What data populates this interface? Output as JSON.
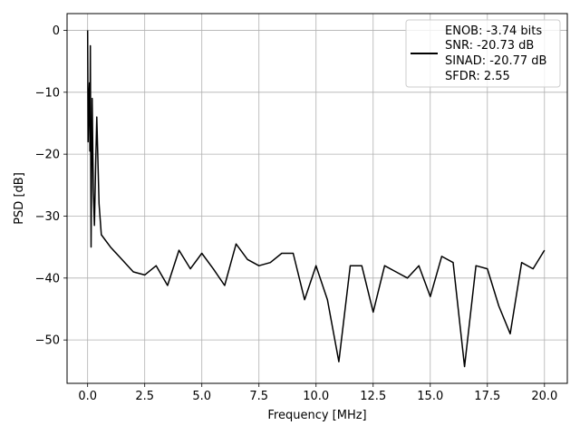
{
  "chart_data": {
    "type": "line",
    "xlabel": "Frequency [MHz]",
    "ylabel": "PSD [dB]",
    "xlim": [
      -0.9,
      21.0
    ],
    "ylim": [
      -57.0,
      2.7
    ],
    "xticks": [
      0.0,
      2.5,
      5.0,
      7.5,
      10.0,
      12.5,
      15.0,
      17.5,
      20.0
    ],
    "xtick_labels": [
      "0.0",
      "2.5",
      "5.0",
      "7.5",
      "10.0",
      "12.5",
      "15.0",
      "17.5",
      "20.0"
    ],
    "yticks": [
      0,
      -10,
      -20,
      -30,
      -40,
      -50
    ],
    "ytick_labels": [
      "0",
      "−10",
      "−20",
      "−30",
      "−40",
      "−50"
    ],
    "grid": true,
    "legend_position": "top-right",
    "legend_lines": [
      "ENOB: -3.74 bits",
      "SNR: -20.73 dB",
      "SINAD: -20.77 dB",
      "SFDR: 2.55"
    ],
    "line_color": "#000000",
    "series": [
      {
        "x": [
          0.0,
          0.02,
          0.05,
          0.08,
          0.1,
          0.12,
          0.15,
          0.18,
          0.2,
          0.25,
          0.3,
          0.35,
          0.4,
          0.5,
          0.6,
          1.0,
          1.5,
          2.0,
          2.5,
          3.0,
          3.5,
          4.0,
          4.5,
          5.0,
          5.5,
          6.0,
          6.5,
          7.0,
          7.5,
          8.0,
          8.5,
          9.0,
          9.5,
          10.0,
          10.5,
          11.0,
          11.5,
          12.0,
          12.5,
          13.0,
          13.5,
          14.0,
          14.5,
          15.0,
          15.5,
          16.0,
          16.5,
          17.0,
          17.5,
          18.0,
          18.5,
          19.0,
          19.5,
          20.0
        ],
        "values": [
          0.0,
          -18.0,
          -12.0,
          -8.5,
          -19.5,
          -2.5,
          -35.0,
          -20.0,
          -11.0,
          -26.0,
          -31.5,
          -22.0,
          -14.0,
          -28.0,
          -33.0,
          -35.0,
          -37.0,
          -39.0,
          -39.5,
          -38.0,
          -41.2,
          -35.5,
          -38.5,
          -36.0,
          -38.5,
          -41.2,
          -34.5,
          -37.0,
          -38.0,
          -37.5,
          -36.0,
          -36.0,
          -43.5,
          -38.0,
          -43.5,
          -53.5,
          -38.0,
          -38.0,
          -45.5,
          -38.0,
          -39.0,
          -40.0,
          -38.0,
          -43.0,
          -36.5,
          -37.5,
          -54.3,
          -38.0,
          -38.5,
          -44.5,
          -49.0,
          -37.5,
          -38.5,
          -35.5
        ]
      }
    ]
  }
}
